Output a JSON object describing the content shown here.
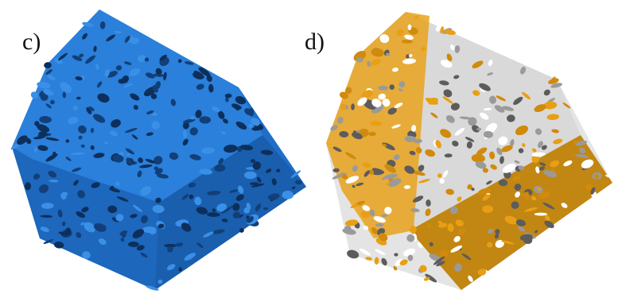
{
  "panels": [
    {
      "label": "c)"
    },
    {
      "label": "d)"
    }
  ]
}
